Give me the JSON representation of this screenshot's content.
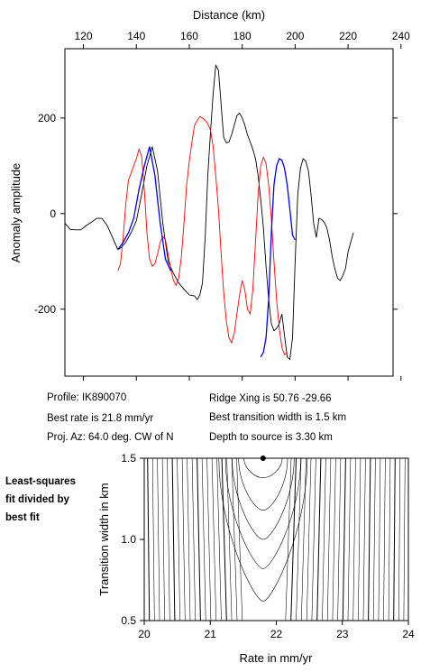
{
  "info": {
    "profile": "Profile: IK890070",
    "best_rate": "Best rate is 21.8 mm/yr",
    "proj_az": "Proj. Az: 64.0 deg. CW of N",
    "ridge_xing": "Ridge Xing is 50.76 -29.66",
    "best_width": "Best transition width is 1.5 km",
    "depth": "Depth to source is   3.30 km"
  },
  "side_note": [
    "Least-squares",
    "fit divided by",
    "best fit"
  ],
  "colors": {
    "observed": "#000000",
    "model": "#ff0000",
    "fit_window": "#0000ff",
    "contour": "#000000"
  },
  "chart_data": [
    {
      "type": "line",
      "xlabel": "Distance (km)",
      "ylabel": "Anomaly amplitude",
      "xlim": [
        113,
        237
      ],
      "ylim": [
        -340,
        345
      ],
      "xticks": [
        120,
        140,
        160,
        180,
        200,
        220,
        240
      ],
      "yticks": [
        -200,
        0,
        200
      ],
      "grid": false,
      "series": [
        {
          "role": "observed",
          "color": "#000000",
          "points": [
            [
              113,
              -20
            ],
            [
              115,
              -33
            ],
            [
              117,
              -34
            ],
            [
              119,
              -34
            ],
            [
              121,
              -25
            ],
            [
              123,
              -18
            ],
            [
              125,
              -10
            ],
            [
              127,
              -10
            ],
            [
              129,
              -25
            ],
            [
              131,
              -50
            ],
            [
              133,
              -75
            ],
            [
              134,
              -72
            ],
            [
              136,
              -60
            ],
            [
              138,
              -40
            ],
            [
              140,
              -15
            ],
            [
              142,
              40
            ],
            [
              144,
              100
            ],
            [
              146,
              140
            ],
            [
              148,
              90
            ],
            [
              150,
              -20
            ],
            [
              152,
              -100
            ],
            [
              154,
              -125
            ],
            [
              156,
              -145
            ],
            [
              158,
              -158
            ],
            [
              160,
              -170
            ],
            [
              162,
              -172
            ],
            [
              163,
              -180
            ],
            [
              164,
              -170
            ],
            [
              165,
              -145
            ],
            [
              166,
              -50
            ],
            [
              167,
              80
            ],
            [
              168,
              170
            ],
            [
              169,
              250
            ],
            [
              170,
              310
            ],
            [
              171,
              300
            ],
            [
              172,
              230
            ],
            [
              173,
              160
            ],
            [
              174,
              148
            ],
            [
              175,
              150
            ],
            [
              176,
              165
            ],
            [
              177,
              185
            ],
            [
              178,
              205
            ],
            [
              179,
              210
            ],
            [
              180,
              200
            ],
            [
              181,
              185
            ],
            [
              182,
              165
            ],
            [
              183,
              150
            ],
            [
              184,
              135
            ],
            [
              185,
              115
            ],
            [
              186,
              80
            ],
            [
              187,
              30
            ],
            [
              188,
              -30
            ],
            [
              189,
              -110
            ],
            [
              190,
              -180
            ],
            [
              191,
              -230
            ],
            [
              192,
              -245
            ],
            [
              193,
              -240
            ],
            [
              194,
              -230
            ],
            [
              195,
              -210
            ],
            [
              196,
              -255
            ],
            [
              197,
              -300
            ],
            [
              198,
              -305
            ],
            [
              199,
              -260
            ],
            [
              200,
              -100
            ],
            [
              201,
              40
            ],
            [
              202,
              95
            ],
            [
              203,
              115
            ],
            [
              204,
              110
            ],
            [
              205,
              90
            ],
            [
              206,
              40
            ],
            [
              207,
              -20
            ],
            [
              208,
              -50
            ],
            [
              209,
              -10
            ],
            [
              210,
              -12
            ],
            [
              211,
              -18
            ],
            [
              212,
              -30
            ],
            [
              213,
              -55
            ],
            [
              214,
              -90
            ],
            [
              215,
              -115
            ],
            [
              216,
              -135
            ],
            [
              217,
              -140
            ],
            [
              218,
              -130
            ],
            [
              219,
              -115
            ],
            [
              220,
              -80
            ],
            [
              221,
              -60
            ],
            [
              222,
              -40
            ]
          ]
        },
        {
          "role": "model",
          "color": "#ff0000",
          "points": [
            [
              133,
              -120
            ],
            [
              134,
              -105
            ],
            [
              135,
              -50
            ],
            [
              136,
              20
            ],
            [
              137,
              70
            ],
            [
              138,
              85
            ],
            [
              139,
              100
            ],
            [
              140,
              115
            ],
            [
              141,
              135
            ],
            [
              142,
              120
            ],
            [
              143,
              50
            ],
            [
              144,
              -40
            ],
            [
              145,
              -95
            ],
            [
              146,
              -110
            ],
            [
              147,
              -105
            ],
            [
              148,
              -85
            ],
            [
              149,
              -60
            ],
            [
              150,
              -48
            ],
            [
              151,
              -55
            ],
            [
              152,
              -85
            ],
            [
              153,
              -115
            ],
            [
              154,
              -140
            ],
            [
              155,
              -150
            ],
            [
              156,
              -135
            ],
            [
              157,
              -90
            ],
            [
              158,
              -20
            ],
            [
              159,
              60
            ],
            [
              160,
              110
            ],
            [
              161,
              150
            ],
            [
              162,
              185
            ],
            [
              163,
              195
            ],
            [
              164,
              203
            ],
            [
              165,
              200
            ],
            [
              166,
              195
            ],
            [
              167,
              188
            ],
            [
              168,
              175
            ],
            [
              169,
              140
            ],
            [
              170,
              80
            ],
            [
              171,
              10
            ],
            [
              172,
              -80
            ],
            [
              173,
              -165
            ],
            [
              174,
              -225
            ],
            [
              175,
              -260
            ],
            [
              176,
              -270
            ],
            [
              177,
              -250
            ],
            [
              178,
              -210
            ],
            [
              179,
              -170
            ],
            [
              180,
              -140
            ],
            [
              181,
              -160
            ],
            [
              182,
              -200
            ],
            [
              183,
              -210
            ],
            [
              184,
              -160
            ],
            [
              185,
              -60
            ],
            [
              186,
              40
            ],
            [
              187,
              100
            ],
            [
              188,
              118
            ],
            [
              189,
              105
            ],
            [
              190,
              60
            ],
            [
              191,
              -10
            ],
            [
              192,
              -100
            ],
            [
              193,
              -180
            ],
            [
              194,
              -240
            ],
            [
              195,
              -280
            ],
            [
              196,
              -295
            ],
            [
              197,
              -290
            ]
          ]
        },
        {
          "role": "fit_window",
          "color": "#0000ff",
          "points": [
            [
              133,
              -75
            ],
            [
              135,
              -60
            ],
            [
              137,
              -40
            ],
            [
              139,
              -10
            ],
            [
              141,
              50
            ],
            [
              143,
              100
            ],
            [
              145,
              140
            ],
            [
              147,
              80
            ],
            [
              149,
              -20
            ],
            [
              151,
              -95
            ],
            [
              153,
              -120
            ]
          ]
        },
        {
          "role": "fit_window",
          "color": "#0000ff",
          "points": [
            [
              187,
              -300
            ],
            [
              188,
              -290
            ],
            [
              189,
              -260
            ],
            [
              190,
              -180
            ],
            [
              191,
              -40
            ],
            [
              192,
              60
            ],
            [
              193,
              100
            ],
            [
              194,
              115
            ],
            [
              195,
              112
            ],
            [
              196,
              95
            ],
            [
              197,
              60
            ],
            [
              198,
              10
            ],
            [
              199,
              -45
            ],
            [
              200,
              -55
            ]
          ]
        }
      ]
    },
    {
      "type": "contour",
      "xlabel": "Rate in mm/yr",
      "ylabel": "Transition width in km",
      "xlim": [
        20,
        24
      ],
      "ylim": [
        0.5,
        1.5
      ],
      "xticks": [
        20,
        21,
        22,
        23,
        24
      ],
      "yticks": [
        0.5,
        1.0,
        1.5
      ],
      "best_fit": {
        "rate": 21.8,
        "width": 1.5
      }
    }
  ]
}
